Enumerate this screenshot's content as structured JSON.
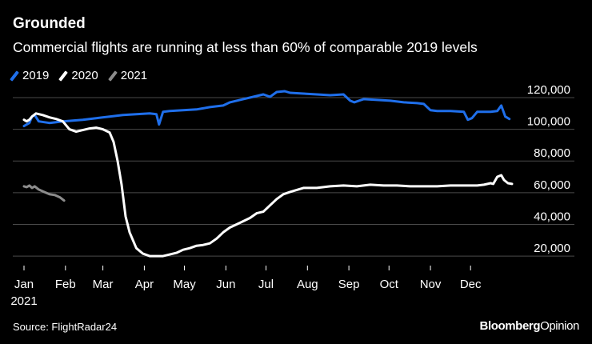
{
  "header": {
    "title": "Grounded",
    "subtitle": "Commercial flights are running at less than 60% of comparable 2019 levels"
  },
  "footer": {
    "source": "Source: FlightRadar24",
    "brand_main": "Bloomberg",
    "brand_sub": "Opinion"
  },
  "colors": {
    "background": "#000000",
    "s2019": "#1f6feb",
    "s2020": "#ffffff",
    "s2021": "#8c8c8c",
    "grid": "#4a4a4a"
  },
  "chart_data": {
    "type": "line",
    "title": "Grounded",
    "subtitle": "Commercial flights are running at less than 60% of comparable 2019 levels",
    "xlabel": "",
    "ylabel": "",
    "x_unit": "day of year",
    "xlim": [
      1,
      366
    ],
    "ylim": [
      15000,
      122000
    ],
    "y_ticks": [
      20000,
      40000,
      60000,
      80000,
      100000,
      120000
    ],
    "y_tick_labels": [
      "20,000",
      "40,000",
      "60,000",
      "80,000",
      "100,000",
      "120,000"
    ],
    "x_ticks": [
      {
        "day": 1,
        "label": "Jan",
        "sub": "2021"
      },
      {
        "day": 32,
        "label": "Feb"
      },
      {
        "day": 60,
        "label": "Mar"
      },
      {
        "day": 91,
        "label": "Apr"
      },
      {
        "day": 121,
        "label": "May"
      },
      {
        "day": 152,
        "label": "Jun"
      },
      {
        "day": 182,
        "label": "Jul"
      },
      {
        "day": 213,
        "label": "Aug"
      },
      {
        "day": 244,
        "label": "Sep"
      },
      {
        "day": 274,
        "label": "Oct"
      },
      {
        "day": 305,
        "label": "Nov"
      },
      {
        "day": 335,
        "label": "Dec"
      }
    ],
    "legend": "top-left",
    "series": [
      {
        "name": "2019",
        "color": "#1f6feb",
        "x": [
          1,
          5,
          7,
          9,
          12,
          20,
          30,
          45,
          55,
          65,
          75,
          85,
          95,
          100,
          102,
          105,
          110,
          120,
          130,
          140,
          150,
          155,
          160,
          165,
          175,
          180,
          185,
          190,
          196,
          200,
          210,
          220,
          230,
          240,
          245,
          248,
          255,
          265,
          275,
          285,
          295,
          300,
          305,
          310,
          320,
          330,
          333,
          336,
          340,
          345,
          350,
          355,
          358,
          361,
          364
        ],
        "values": [
          102000,
          104000,
          108000,
          109000,
          105000,
          104000,
          105000,
          106000,
          107000,
          108000,
          109000,
          109500,
          110000,
          109500,
          103000,
          111000,
          111500,
          112000,
          112500,
          114000,
          115000,
          117000,
          118000,
          119000,
          121000,
          122000,
          120500,
          123500,
          124000,
          123000,
          122500,
          122000,
          121500,
          122000,
          118000,
          117000,
          119000,
          118500,
          118000,
          117000,
          116500,
          116000,
          112000,
          111500,
          111500,
          111000,
          106000,
          107000,
          111000,
          111000,
          111000,
          111500,
          115000,
          108000,
          106500
        ]
      },
      {
        "name": "2020",
        "color": "#ffffff",
        "x": [
          1,
          3,
          5,
          7,
          10,
          15,
          20,
          25,
          30,
          35,
          40,
          45,
          50,
          55,
          60,
          65,
          68,
          71,
          74,
          77,
          80,
          85,
          90,
          95,
          100,
          105,
          110,
          115,
          120,
          125,
          130,
          135,
          140,
          145,
          150,
          155,
          160,
          165,
          170,
          175,
          180,
          185,
          190,
          195,
          200,
          210,
          220,
          230,
          240,
          250,
          260,
          270,
          280,
          290,
          300,
          310,
          320,
          330,
          340,
          345,
          350,
          352,
          355,
          358,
          360,
          363,
          366
        ],
        "values": [
          106000,
          105000,
          106000,
          108000,
          110000,
          109000,
          107500,
          106500,
          105000,
          100000,
          98500,
          99500,
          100500,
          101000,
          100000,
          98000,
          92000,
          80000,
          65000,
          45000,
          35000,
          25000,
          21500,
          20000,
          20000,
          20000,
          21000,
          22000,
          24000,
          25000,
          26500,
          27000,
          28000,
          31000,
          35000,
          38000,
          40000,
          42000,
          44000,
          47000,
          48000,
          52000,
          56000,
          59000,
          60500,
          63000,
          63000,
          64000,
          64500,
          64000,
          65000,
          64500,
          64500,
          64000,
          64000,
          64000,
          64500,
          64500,
          64500,
          65000,
          66000,
          65500,
          70000,
          71000,
          68000,
          66000,
          65500
        ]
      },
      {
        "name": "2021",
        "color": "#8c8c8c",
        "x": [
          1,
          3,
          5,
          7,
          9,
          12,
          16,
          20,
          24,
          28,
          31
        ],
        "values": [
          64000,
          63500,
          64500,
          63000,
          64000,
          62000,
          60500,
          59000,
          58500,
          57000,
          55000
        ]
      }
    ]
  }
}
